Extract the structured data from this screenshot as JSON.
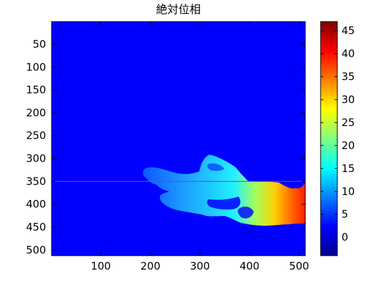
{
  "chart_data": {
    "type": "heatmap",
    "title": "絶対位相",
    "xlabel": "",
    "ylabel": "",
    "x_ticks": [
      "100",
      "200",
      "300",
      "400",
      "500"
    ],
    "y_ticks": [
      "50",
      "100",
      "150",
      "200",
      "250",
      "300",
      "350",
      "400",
      "450",
      "500"
    ],
    "xlim": [
      0.5,
      512.5
    ],
    "ylim": [
      0.5,
      512.5
    ],
    "y_direction": "reversed",
    "colormap": "jet",
    "colorbar": {
      "range": [
        -4,
        47
      ],
      "ticks": [
        "45",
        "40",
        "35",
        "30",
        "25",
        "20",
        "15",
        "10",
        "5",
        "0"
      ]
    },
    "background_value": 0,
    "reference_line": {
      "y": 350,
      "color": "#ff2020"
    },
    "phase_trend": "values increase left to right across the hand region, from about 2 near x=200 to about 40 near x=510",
    "grid": false
  },
  "colors": {
    "background": "#ffffff",
    "axes_edge": "#000000"
  }
}
